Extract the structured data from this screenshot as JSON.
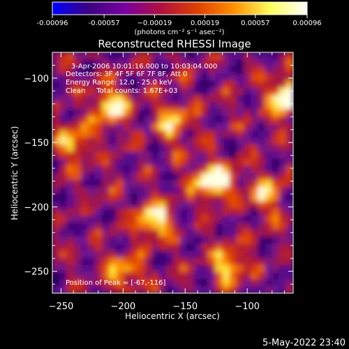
{
  "chart_data": {
    "type": "heatmap",
    "title": "Reconstructed RHESSI Image",
    "xlabel": "Heliocentric X (arcsec)",
    "ylabel": "Heliocentric Y (arcsec)",
    "xlim": [
      -257,
      -63
    ],
    "ylim": [
      -267,
      -80
    ],
    "x_ticks": [
      -250,
      -200,
      -150,
      -100
    ],
    "x_tick_labels": [
      "−250",
      "−200",
      "−150",
      "−100"
    ],
    "y_ticks": [
      -100,
      -150,
      -200,
      -250
    ],
    "y_tick_labels": [
      "−100",
      "−150",
      "−200",
      "−250"
    ],
    "colorbar": {
      "min": -0.00096,
      "max": 0.00096,
      "tick_values": [
        -0.00096,
        -0.00057,
        -0.00019,
        0.00019,
        0.00057,
        0.00096
      ],
      "tick_labels": [
        "-0.00096",
        "-0.00057",
        "−0.00019",
        "0.00019",
        "0.00057",
        "0.00096"
      ],
      "unit_label": "(photons cm⁻² s⁻¹ asec⁻²)",
      "colors": [
        "#0000ff",
        "#3c0082",
        "#7a00a0",
        "#b01040",
        "#e04000",
        "#ff9000",
        "#ffff60",
        "#ffffff"
      ]
    },
    "annotations": {
      "time": "3-Apr-2006 10:01:16.000 to 10:03:04.000",
      "detectors": "Detectors: 3F 4F 5F 6F 7F 8F, Att 0",
      "energy": "Energy Range: 12.0 - 25.0 keV",
      "clean": "Clean     Total counts: 1.67E+03",
      "peak": "Position of Peak = [-67,-116]"
    },
    "hot_spots": [
      {
        "x": -127,
        "y": -180,
        "value": 0.00096
      },
      {
        "x": -67,
        "y": -116,
        "value": 0.00096
      },
      {
        "x": -210,
        "y": -123,
        "value": 0.0007
      },
      {
        "x": -175,
        "y": -210,
        "value": 0.0007
      },
      {
        "x": -115,
        "y": -245,
        "value": 0.0006
      },
      {
        "x": -240,
        "y": -150,
        "value": 0.0005
      },
      {
        "x": -160,
        "y": -135,
        "value": 0.0005
      },
      {
        "x": -85,
        "y": -190,
        "value": 0.0005
      },
      {
        "x": -200,
        "y": -250,
        "value": 0.0005
      }
    ]
  },
  "footer": {
    "date": "5-May-2022 23:40"
  }
}
